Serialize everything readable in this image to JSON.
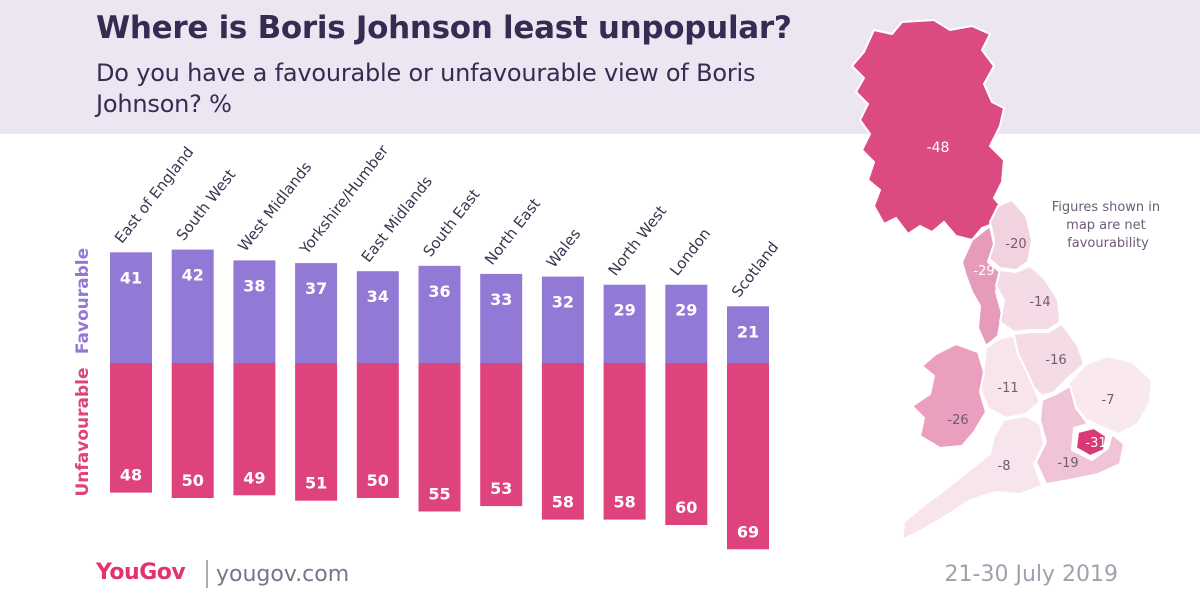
{
  "title": "Where is Boris Johnson least unpopular?",
  "subtitle": "Do you have a favourable or unfavourable view of Boris Johnson? %",
  "colors": {
    "favourable": "#9379d6",
    "unfavourable": "#df437e",
    "header_bg": "#ebe6f2",
    "title_text": "#352c51",
    "brand": "#e2336c"
  },
  "chart_data": {
    "type": "bar",
    "orientation": "diverging-vertical",
    "title": "Where is Boris Johnson least unpopular?",
    "subtitle": "Do you have a favourable or unfavourable view of Boris Johnson? %",
    "categories": [
      "East of England",
      "South West",
      "West Midlands",
      "Yorkshire/Humber",
      "East Midlands",
      "South East",
      "North East",
      "Wales",
      "North West",
      "London",
      "Scotland"
    ],
    "series": [
      {
        "name": "Favourable",
        "direction": "up",
        "values": [
          41,
          42,
          38,
          37,
          34,
          36,
          33,
          32,
          29,
          29,
          21
        ]
      },
      {
        "name": "Unfavourable",
        "direction": "down",
        "values": [
          48,
          50,
          49,
          51,
          50,
          55,
          53,
          58,
          58,
          60,
          69
        ]
      }
    ],
    "unit": "%"
  },
  "map": {
    "note": "Figures shown in map are net favourability",
    "regions": [
      {
        "name": "Scotland",
        "net": -48,
        "label": "-48"
      },
      {
        "name": "North East",
        "net": -20,
        "label": "-20"
      },
      {
        "name": "North West",
        "net": -29,
        "label": "-29"
      },
      {
        "name": "Yorkshire/Humber",
        "net": -14,
        "label": "-14"
      },
      {
        "name": "East Midlands",
        "net": -16,
        "label": "-16"
      },
      {
        "name": "West Midlands",
        "net": -11,
        "label": "-11"
      },
      {
        "name": "Wales",
        "net": -26,
        "label": "-26"
      },
      {
        "name": "East of England",
        "net": -7,
        "label": "-7"
      },
      {
        "name": "London",
        "net": -31,
        "label": "-31"
      },
      {
        "name": "South East",
        "net": -19,
        "label": "-19"
      },
      {
        "name": "South West",
        "net": -8,
        "label": "-8"
      }
    ]
  },
  "footer": {
    "logo": "YouGov",
    "url": "yougov.com",
    "date": "21-30 July 2019"
  }
}
